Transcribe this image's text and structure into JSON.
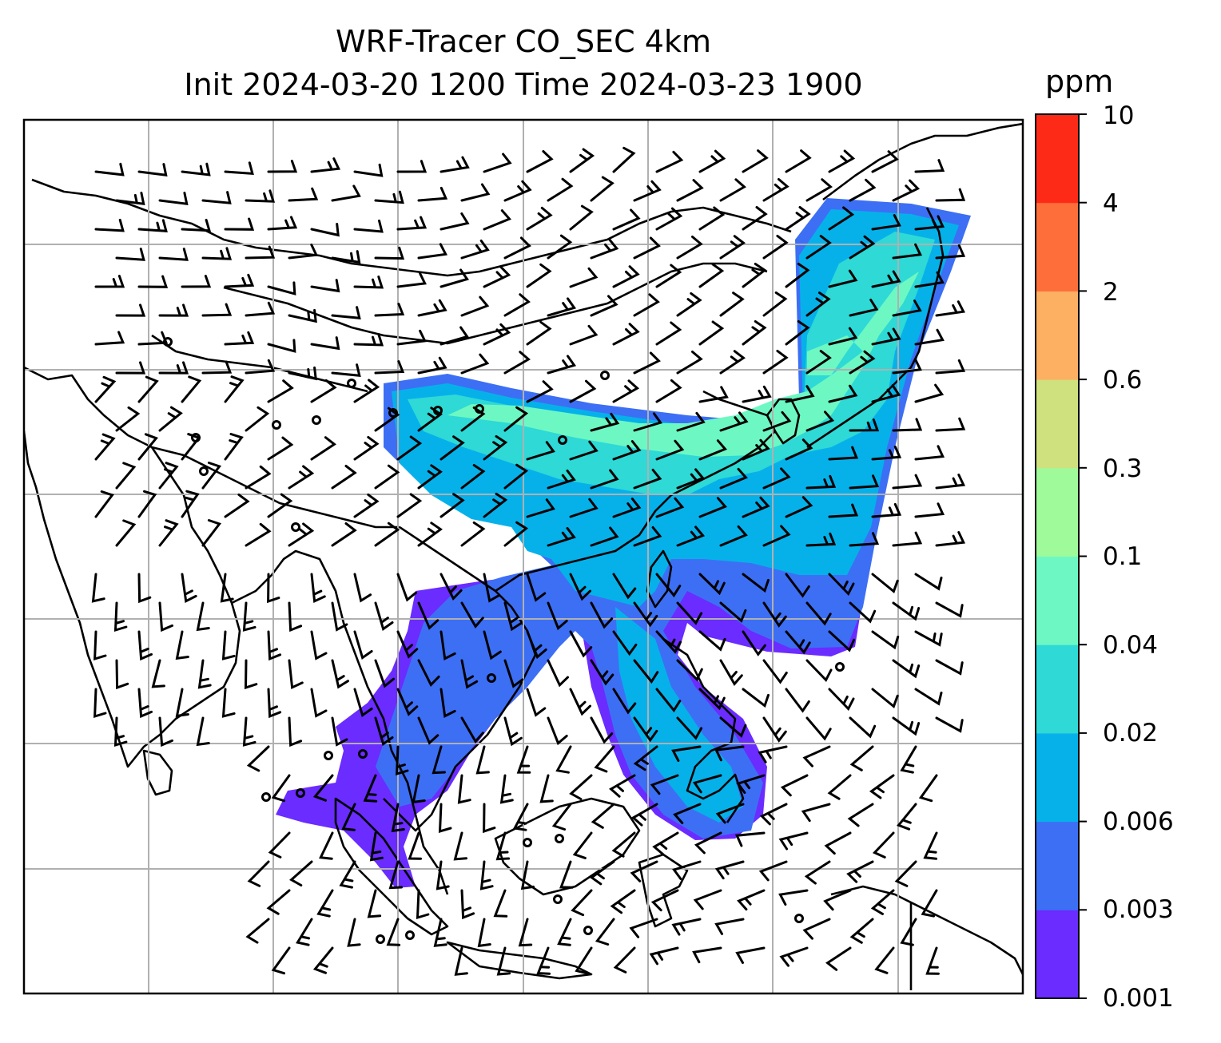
{
  "map": {
    "title": "WRF-Tracer CO_SEC 4km",
    "subtitle": "Init 2024-03-20 1200 Time 2024-03-23 1900",
    "colorbar": {
      "unit": "ppm",
      "levels": [
        "0.001",
        "0.003",
        "0.006",
        "0.02",
        "0.04",
        "0.1",
        "0.3",
        "0.6",
        "2",
        "4",
        "10"
      ],
      "colors": [
        "#6a2cff",
        "#3d6ff5",
        "#06b1ea",
        "#2ed9d6",
        "#6df8c3",
        "#9ffa9a",
        "#cfe07e",
        "#fdaf62",
        "#fe6e3a",
        "#fe2a18"
      ]
    },
    "plume_colors": {
      "outer": "#6a2cff",
      "low": "#3d6ff5",
      "mid": "#06b1ea",
      "high": "#2ed9d6",
      "peak": "#6df8c3"
    }
  }
}
